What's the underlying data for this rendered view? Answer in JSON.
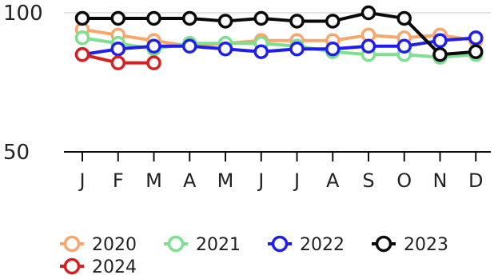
{
  "chart_data": {
    "type": "line",
    "categories": [
      "J",
      "F",
      "M",
      "A",
      "M",
      "J",
      "J",
      "A",
      "S",
      "O",
      "N",
      "D"
    ],
    "y_ticks": [
      "100",
      "50"
    ],
    "ylim": [
      50,
      100
    ],
    "grid": "horizontal line at 100",
    "legend_position": "bottom",
    "series": [
      {
        "name": "2020",
        "color": "#f9a66c",
        "values": [
          94,
          92,
          90,
          88,
          89,
          90,
          90,
          90,
          92,
          91,
          92,
          90
        ]
      },
      {
        "name": "2021",
        "color": "#7ddf8f",
        "values": [
          91,
          89,
          87,
          89,
          89,
          89,
          88,
          86,
          85,
          85,
          84,
          85
        ]
      },
      {
        "name": "2022",
        "color": "#1f1fe8",
        "values": [
          85,
          87,
          88,
          88,
          87,
          86,
          87,
          87,
          88,
          88,
          90,
          91
        ]
      },
      {
        "name": "2023",
        "color": "#0a0a0a",
        "values": [
          98,
          98,
          98,
          98,
          97,
          98,
          97,
          97,
          100,
          98,
          85,
          86
        ]
      },
      {
        "name": "2024",
        "color": "#d42020",
        "values": [
          85,
          82,
          82,
          null,
          null,
          null,
          null,
          null,
          null,
          null,
          null,
          null
        ]
      }
    ]
  }
}
